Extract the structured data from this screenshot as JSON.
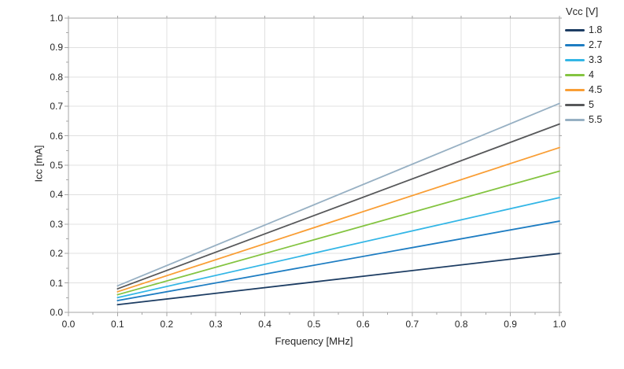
{
  "colors": {
    "axis": "#a6a6a6",
    "grid": "#e0e0e0",
    "text": "#262626",
    "background": "#ffffff"
  },
  "chart_data": {
    "type": "line",
    "title": "",
    "xlabel": "Frequency [MHz]",
    "ylabel": "Icc [mA]",
    "xlim": [
      0.0,
      1.0
    ],
    "ylim": [
      0.0,
      1.0
    ],
    "grid": true,
    "x_tick_labels": [
      "0.0",
      "0.1",
      "0.2",
      "0.3",
      "0.4",
      "0.5",
      "0.6",
      "0.7",
      "0.8",
      "0.9",
      "1.0"
    ],
    "y_tick_labels": [
      "0.0",
      "0.1",
      "0.2",
      "0.3",
      "0.4",
      "0.5",
      "0.6",
      "0.7",
      "0.8",
      "0.9",
      "1.0"
    ],
    "legend": {
      "title": "Vcc [V]",
      "position": "top-right"
    },
    "x": [
      0.1,
      1.0
    ],
    "series": [
      {
        "name": "1.8",
        "color": "#1d3d63",
        "values": [
          0.026,
          0.2
        ]
      },
      {
        "name": "2.7",
        "color": "#1e7dc2",
        "values": [
          0.04,
          0.31
        ]
      },
      {
        "name": "3.3",
        "color": "#33b6e6",
        "values": [
          0.05,
          0.39
        ]
      },
      {
        "name": "4",
        "color": "#84c441",
        "values": [
          0.06,
          0.48
        ]
      },
      {
        "name": "4.5",
        "color": "#f99e35",
        "values": [
          0.07,
          0.56
        ]
      },
      {
        "name": "5",
        "color": "#57585a",
        "values": [
          0.08,
          0.64
        ]
      },
      {
        "name": "5.5",
        "color": "#97b0c3",
        "values": [
          0.09,
          0.71
        ]
      }
    ]
  }
}
